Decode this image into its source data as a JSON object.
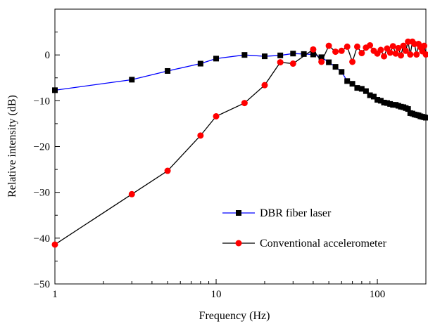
{
  "chart_data": {
    "type": "line",
    "title": "",
    "xlabel": "Frequency (Hz)",
    "ylabel": "Relative intensity (dB)",
    "xscale": "log",
    "xlim": [
      1,
      200
    ],
    "ylim": [
      -50,
      10
    ],
    "grid": false,
    "legend_position": "bottom-right",
    "x_tick_labels": [
      {
        "value": 1,
        "label": "1"
      },
      {
        "value": 10,
        "label": "10"
      },
      {
        "value": 100,
        "label": "100"
      }
    ],
    "y_tick_labels": [
      {
        "value": 0,
        "label": "0"
      },
      {
        "value": -10,
        "label": "−10"
      },
      {
        "value": -20,
        "label": "−20"
      },
      {
        "value": -30,
        "label": "−30"
      },
      {
        "value": -40,
        "label": "−40"
      },
      {
        "value": -50,
        "label": "−50"
      }
    ],
    "series": [
      {
        "name": "DBR fiber laser",
        "line_color": "#0000ff",
        "marker": "square",
        "marker_color": "#000000",
        "x": [
          1,
          3,
          5,
          8,
          10,
          15,
          20,
          25,
          30,
          35,
          40,
          45,
          50,
          55,
          60,
          65,
          70,
          75,
          80,
          85,
          90,
          95,
          100,
          105,
          110,
          115,
          120,
          125,
          130,
          135,
          140,
          145,
          150,
          155,
          160,
          165,
          170,
          175,
          180,
          185,
          190,
          195,
          200
        ],
        "y": [
          -7.7,
          -5.4,
          -3.5,
          -1.9,
          -0.8,
          0.0,
          -0.3,
          -0.1,
          0.3,
          0.2,
          0.1,
          -0.5,
          -1.6,
          -2.6,
          -3.7,
          -5.7,
          -6.3,
          -7.2,
          -7.4,
          -7.9,
          -8.8,
          -9.1,
          -9.8,
          -10.0,
          -10.4,
          -10.5,
          -10.7,
          -10.9,
          -10.9,
          -11.1,
          -11.3,
          -11.4,
          -11.6,
          -11.8,
          -12.7,
          -12.8,
          -13.0,
          -13.1,
          -13.2,
          -13.4,
          -13.5,
          -13.6,
          -13.7
        ]
      },
      {
        "name": "Conventional accelerometer",
        "line_color": "#000000",
        "marker": "circle",
        "marker_color": "#ff0000",
        "x": [
          1,
          3,
          5,
          8,
          10,
          15,
          20,
          25,
          30,
          40,
          45,
          50,
          55,
          60,
          65,
          70,
          75,
          80,
          85,
          90,
          95,
          100,
          105,
          110,
          115,
          120,
          125,
          130,
          135,
          140,
          145,
          150,
          155,
          160,
          165,
          170,
          175,
          180,
          185,
          190,
          195,
          200
        ],
        "y": [
          -41.4,
          -30.4,
          -25.3,
          -17.6,
          -13.4,
          -10.5,
          -6.6,
          -1.6,
          -1.9,
          1.2,
          -1.5,
          2.0,
          0.7,
          0.9,
          1.8,
          -1.5,
          1.8,
          0.4,
          1.6,
          2.1,
          0.9,
          0.3,
          1.1,
          -0.3,
          1.4,
          0.5,
          1.9,
          0.3,
          1.5,
          -0.1,
          2.0,
          0.9,
          2.9,
          0.1,
          2.9,
          2.4,
          0.1,
          2.4,
          1.7,
          0.8,
          2.0,
          0.1
        ]
      }
    ]
  }
}
